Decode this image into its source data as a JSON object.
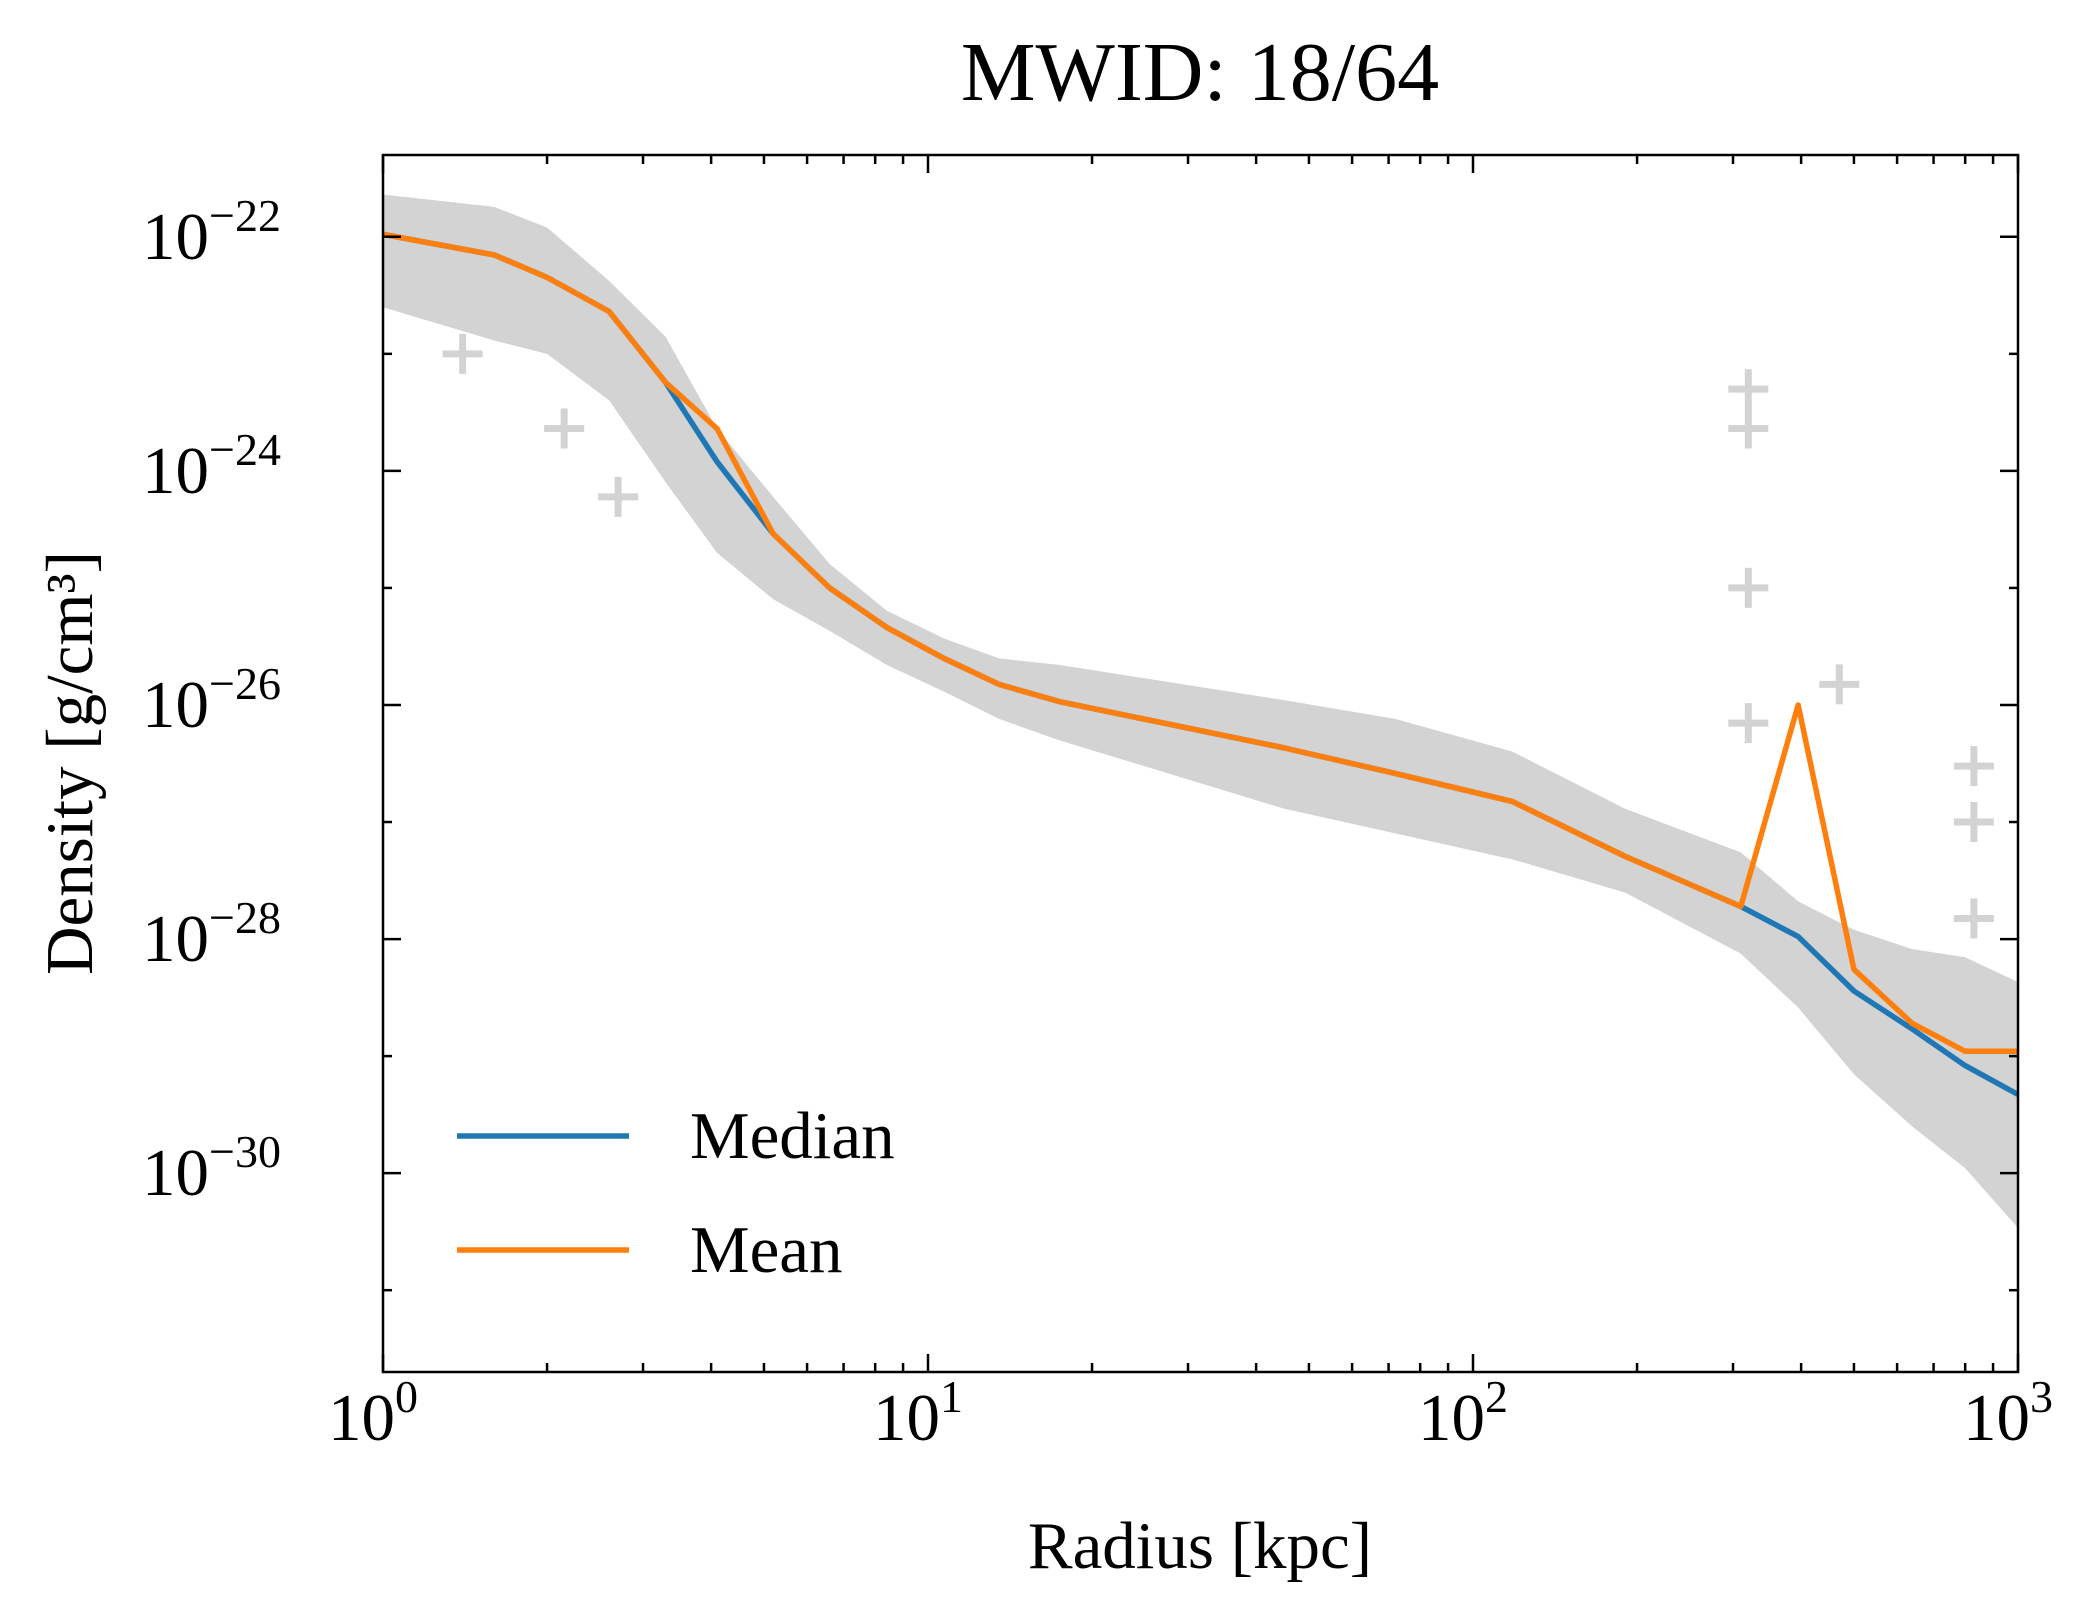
{
  "chart_data": {
    "type": "line",
    "title": "MWID: 18/64",
    "xlabel": "Radius [kpc]",
    "ylabel": "Density [g/cm³]",
    "xscale": "log",
    "yscale": "log",
    "xlim": [
      1,
      1000
    ],
    "ylim": [
      2e-32,
      5e-22
    ],
    "xticks": [
      {
        "value": 1,
        "label": "10",
        "exponent": "0"
      },
      {
        "value": 10,
        "label": "10",
        "exponent": "1"
      },
      {
        "value": 100,
        "label": "10",
        "exponent": "2"
      },
      {
        "value": 1000,
        "label": "10",
        "exponent": "3"
      }
    ],
    "yticks": [
      {
        "value": 1e-22,
        "label": "10",
        "exponent": "−22"
      },
      {
        "value": 1e-24,
        "label": "10",
        "exponent": "−24"
      },
      {
        "value": 1e-26,
        "label": "10",
        "exponent": "−26"
      },
      {
        "value": 1e-28,
        "label": "10",
        "exponent": "−28"
      },
      {
        "value": 1e-30,
        "label": "10",
        "exponent": "−30"
      }
    ],
    "xminor": [
      2,
      3,
      4,
      5,
      6,
      7,
      8,
      9,
      20,
      30,
      40,
      50,
      60,
      70,
      80,
      90,
      200,
      300,
      400,
      500,
      600,
      700,
      800,
      900
    ],
    "yminor": [
      1e-23,
      1e-25,
      1e-27,
      1e-29,
      1e-31
    ],
    "legend": "lower left",
    "x": [
      1,
      1.6,
      2.0,
      2.6,
      3.3,
      4.1,
      5.2,
      6.6,
      8.4,
      10.7,
      13.5,
      17.4,
      45,
      72,
      118,
      190,
      310,
      395,
      500,
      640,
      800,
      1000
    ],
    "series": [
      {
        "name": "Median",
        "color": "#1f77b4",
        "values": [
          1.05e-22,
          7e-23,
          4.5e-23,
          2.3e-23,
          5.7e-24,
          1.2e-24,
          2.9e-25,
          1e-25,
          4.6e-26,
          2.5e-26,
          1.5e-26,
          1.07e-26,
          4.3e-27,
          2.6e-27,
          1.5e-27,
          5.1e-28,
          1.9e-28,
          1.05e-28,
          3.6e-29,
          1.7e-29,
          8.3e-30,
          4.7e-30
        ]
      },
      {
        "name": "Mean",
        "color": "#ff7f0e",
        "values": [
          1.05e-22,
          7e-23,
          4.5e-23,
          2.3e-23,
          5.7e-24,
          2.3e-24,
          2.9e-25,
          1e-25,
          4.6e-26,
          2.5e-26,
          1.5e-26,
          1.07e-26,
          4.3e-27,
          2.6e-27,
          1.5e-27,
          5.1e-28,
          1.9e-28,
          1e-26,
          5.5e-29,
          1.9e-29,
          1.1e-29,
          1.1e-29
        ]
      }
    ],
    "band": {
      "color": "#d3d3d3",
      "upper": [
        2.3e-22,
        1.8e-22,
        1.2e-22,
        4.2e-23,
        1.4e-23,
        2.3e-24,
        6e-25,
        1.6e-25,
        6.4e-26,
        3.7e-26,
        2.5e-26,
        2.2e-26,
        1.1e-26,
        7.6e-27,
        4e-27,
        1.3e-27,
        5.5e-28,
        2.1e-28,
        1.2e-28,
        8.2e-29,
        7e-29,
        4.3e-29
      ],
      "lower": [
        2.5e-23,
        1.3e-23,
        1e-23,
        4e-24,
        8e-25,
        2e-25,
        8e-26,
        4.3e-26,
        2.2e-26,
        1.3e-26,
        7.6e-27,
        5e-27,
        1.3e-27,
        8e-28,
        4.8e-28,
        2.5e-28,
        7.5e-29,
        2.6e-29,
        7e-30,
        2.5e-30,
        1.1e-30,
        3.4e-31
      ]
    },
    "outliers": {
      "color": "#d3d3d3",
      "x": [
        1.4,
        2.15,
        2.7,
        320,
        320,
        320,
        320,
        470,
        830,
        830,
        830
      ],
      "y": [
        1e-23,
        2.3e-24,
        6e-25,
        5e-24,
        2.3e-24,
        1e-25,
        7e-27,
        1.5e-26,
        3e-27,
        1e-27,
        1.5e-28
      ]
    }
  }
}
